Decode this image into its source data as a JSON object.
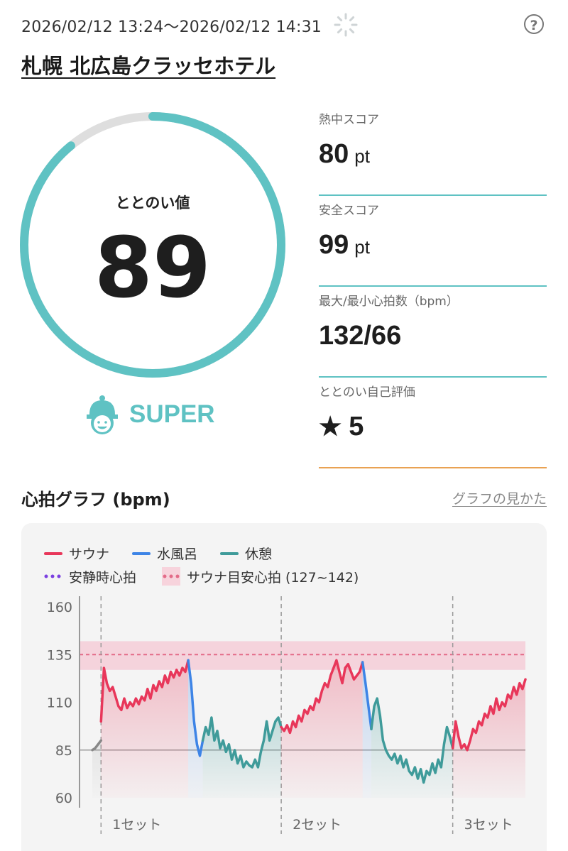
{
  "header": {
    "datetime": "2026/02/12 13:24～2026/02/12 14:31",
    "help_label": "?"
  },
  "place_name": "札幌 北広島クラッセホテル",
  "gauge": {
    "label": "ととのい値",
    "value": 89,
    "max": 100,
    "color": "#5fc2c3",
    "track_color": "#dedede"
  },
  "rank": {
    "icon": "sauna-hat-face-icon",
    "label": "SUPER"
  },
  "stats": [
    {
      "label": "熱中スコア",
      "value": "80",
      "unit": "pt"
    },
    {
      "label": "安全スコア",
      "value": "99",
      "unit": "pt"
    },
    {
      "label": "最大/最小心拍数（bpm）",
      "value": "132/66",
      "unit": ""
    },
    {
      "label": "ととのい自己評価",
      "value": "5",
      "unit": "",
      "icon": "star-icon"
    }
  ],
  "chart_section": {
    "title": "心拍グラフ (bpm)",
    "link": "グラフの見かた"
  },
  "chart_data": {
    "type": "line",
    "legend": [
      {
        "label": "サウナ",
        "color": "#e8375a",
        "style": "line"
      },
      {
        "label": "水風呂",
        "color": "#3d84e6",
        "style": "line"
      },
      {
        "label": "休憩",
        "color": "#3f9b9a",
        "style": "line"
      },
      {
        "label": "安静時心拍",
        "color": "#7a3fe0",
        "style": "dots"
      },
      {
        "label": "サウナ目安心拍 (127~142)",
        "color": "#e36b88",
        "style": "band"
      }
    ],
    "y_ticks": [
      160,
      135,
      110,
      85,
      60
    ],
    "ylim": [
      60,
      160
    ],
    "target_band": [
      127,
      142
    ],
    "target_line": 135,
    "resting_hr": 85,
    "set_labels": [
      "1セット",
      "2セット",
      "3セット"
    ],
    "colors": {
      "sauna": "#e8375a",
      "cold": "#3d84e6",
      "rest": "#3f9b9a",
      "pre": "#888888"
    },
    "segments": [
      {
        "phase": "pre",
        "values": [
          85,
          86,
          88,
          90
        ]
      },
      {
        "phase": "sauna",
        "values": [
          100,
          128,
          120,
          116,
          118,
          113,
          108,
          106,
          112,
          107,
          110,
          108,
          112,
          109,
          113,
          111,
          117,
          112,
          119,
          116,
          121,
          118,
          124,
          120,
          126,
          123,
          127,
          124,
          128,
          126,
          132
        ]
      },
      {
        "phase": "cold",
        "values": [
          132,
          120,
          100,
          88,
          82,
          90
        ]
      },
      {
        "phase": "rest",
        "values": [
          90,
          97,
          93,
          102,
          90,
          95,
          86,
          90,
          84,
          88,
          80,
          85,
          78,
          82,
          76,
          79,
          77,
          76,
          80,
          76,
          84,
          90,
          100,
          90,
          95,
          100,
          102,
          97
        ]
      },
      {
        "phase": "sauna",
        "values": [
          97,
          95,
          98,
          94,
          100,
          97,
          103,
          100,
          106,
          104,
          108,
          106,
          112,
          110,
          116,
          120,
          118,
          124,
          128,
          132,
          126,
          120,
          128,
          130,
          126,
          122,
          124,
          126,
          131
        ]
      },
      {
        "phase": "cold",
        "values": [
          131,
          120,
          108,
          96
        ]
      },
      {
        "phase": "rest",
        "values": [
          96,
          108,
          112,
          103,
          90,
          85,
          82,
          80,
          83,
          78,
          82,
          76,
          80,
          74,
          72,
          76,
          70,
          75,
          68,
          74,
          72,
          78,
          73,
          80,
          76,
          88,
          97,
          92,
          86
        ]
      },
      {
        "phase": "sauna",
        "values": [
          86,
          100,
          92,
          86,
          88,
          85,
          90,
          96,
          94,
          100,
          98,
          104,
          102,
          108,
          104,
          112,
          106,
          110,
          108,
          114,
          112,
          118,
          114,
          120,
          117,
          122
        ]
      }
    ]
  }
}
